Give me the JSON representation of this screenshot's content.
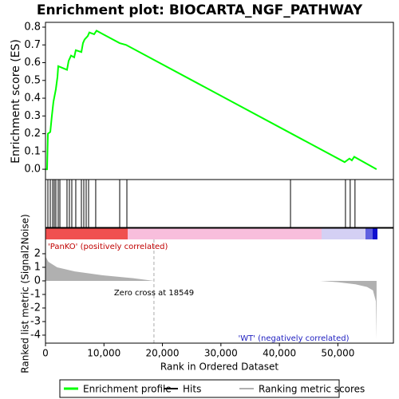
{
  "chart_data": [
    {
      "type": "line",
      "title": "Enrichment plot: BIOCARTA_NGF_PATHWAY",
      "ylabel": "Enrichment score (ES)",
      "xlim": [
        0,
        59500
      ],
      "ylim": [
        -0.058,
        0.827
      ],
      "yticks": [
        {
          "value": 0,
          "label": "0.0"
        },
        0.1,
        0.2,
        0.3,
        0.4,
        0.5,
        0.6,
        0.7,
        0.8
      ],
      "grid": false,
      "series": [
        {
          "name": "Enrichment profile",
          "color": "#00ff00",
          "x": [
            0,
            270,
            410,
            820,
            1090,
            1360,
            1770,
            2050,
            2180,
            3680,
            3960,
            4370,
            4910,
            5180,
            6140,
            6410,
            6680,
            7230,
            7500,
            8320,
            8730,
            12690,
            13780,
            51160,
            51980,
            52390,
            52800,
            56620
          ],
          "values": [
            0,
            0,
            0.2,
            0.21,
            0.3,
            0.38,
            0.45,
            0.52,
            0.58,
            0.56,
            0.61,
            0.64,
            0.63,
            0.67,
            0.66,
            0.71,
            0.73,
            0.75,
            0.77,
            0.76,
            0.78,
            0.71,
            0.7,
            0.04,
            0.06,
            0.05,
            0.07,
            0
          ]
        }
      ]
    },
    {
      "type": "rug",
      "xlim": [
        0,
        59500
      ],
      "series": [
        {
          "name": "Hits",
          "color": "#000000",
          "x": [
            410,
            820,
            1230,
            1500,
            1770,
            2180,
            2460,
            3680,
            4090,
            4500,
            5180,
            6140,
            6550,
            6960,
            7370,
            8590,
            12690,
            13920,
            41900,
            51300,
            52110,
            52930
          ]
        }
      ]
    },
    {
      "type": "area",
      "xlabel": "Rank in Ordered Dataset",
      "ylabel": "Ranked list metric (Signal2Noise)",
      "xlim": [
        0,
        59500
      ],
      "ylim": [
        -4.59,
        3.88
      ],
      "xticks": [
        0,
        {
          "value": 10000,
          "label": "10,000"
        },
        {
          "value": 20000,
          "label": "20,000"
        },
        {
          "value": 30000,
          "label": "30,000"
        },
        {
          "value": 40000,
          "label": "40,000"
        },
        {
          "value": 50000,
          "label": "50,000"
        }
      ],
      "yticks": [
        -4,
        -3,
        -2,
        -1,
        0,
        1,
        2
      ],
      "zero_cross": 18549,
      "annotations": [
        "'PanKO' (positively correlated)",
        "Zero cross at 18549",
        "'WT' (negatively correlated)"
      ],
      "series": [
        {
          "name": "Ranking metric scores",
          "color": "#b0b0b0",
          "x": [
            0,
            500,
            2000,
            5000,
            10000,
            15000,
            18549,
            47000,
            50000,
            53000,
            55000,
            56000,
            56500,
            56620
          ],
          "values": [
            1.8,
            1.4,
            1.0,
            0.7,
            0.4,
            0.2,
            0,
            0,
            -0.1,
            -0.25,
            -0.45,
            -0.7,
            -1.5,
            -4.3
          ]
        }
      ]
    }
  ]
}
